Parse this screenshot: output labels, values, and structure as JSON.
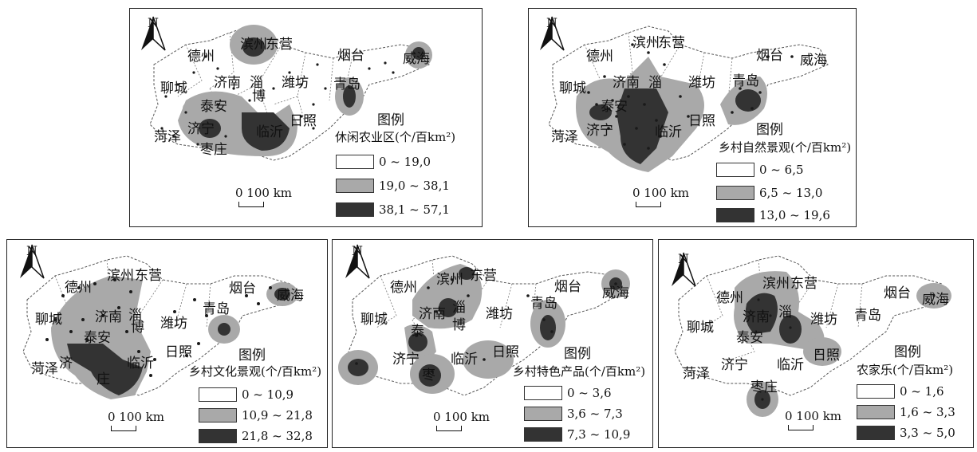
{
  "colors": {
    "low": "#ffffff",
    "mid": "#a9a9a9",
    "high": "#333333",
    "point": "#1a1a1a"
  },
  "cities": [
    "德州",
    "滨州",
    "东营",
    "烟台",
    "威海",
    "聊城",
    "济南",
    "淄",
    "博",
    "潍坊",
    "青岛",
    "泰安",
    "济宁",
    "菏泽",
    "临沂",
    "日照",
    "枣庄"
  ],
  "panels": [
    {
      "id": "p1",
      "legend_title": "图例",
      "legend_subtitle": "休闲农业区(个/百km²)",
      "classes": [
        "0 ~ 19,0",
        "19,0 ~ 38,1",
        "38,1 ~ 57,1"
      ],
      "scale_label": "0   100 km",
      "north": "N"
    },
    {
      "id": "p2",
      "legend_title": "图例",
      "legend_subtitle": "乡村自然景观(个/百km²)",
      "classes": [
        "0 ~ 6,5",
        "6,5 ~ 13,0",
        "13,0 ~ 19,6"
      ],
      "scale_label": "0   100 km",
      "north": "N"
    },
    {
      "id": "p3",
      "legend_title": "图例",
      "legend_subtitle": "乡村文化景观(个/百km²)",
      "classes": [
        "0 ~ 10,9",
        "10,9 ~ 21,8",
        "21,8 ~ 32,8"
      ],
      "scale_label": "0   100 km",
      "north": "N"
    },
    {
      "id": "p4",
      "legend_title": "图例",
      "legend_subtitle": "乡村特色产品(个/百km²)",
      "classes": [
        "0 ~ 3,6",
        "3,6 ~ 7,3",
        "7,3 ~ 10,9"
      ],
      "scale_label": "0   100 km",
      "north": "N"
    },
    {
      "id": "p5",
      "legend_title": "图例",
      "legend_subtitle": "农家乐(个/百km²)",
      "classes": [
        "0 ~ 1,6",
        "1,6 ~ 3,3",
        "3,3 ~ 5,0"
      ],
      "scale_label": "0   100 km",
      "north": "N"
    }
  ]
}
